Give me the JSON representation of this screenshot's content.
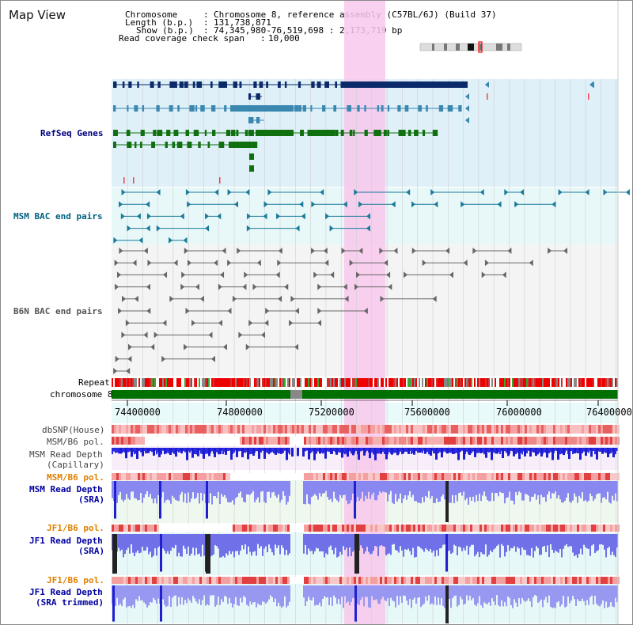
{
  "title": "Map View",
  "info": {
    "chromosome_label": "Chromosome",
    "chromosome_value": "Chromosome 8, reference assembly (C57BL/6J) (Build 37)",
    "length_label": "Length (b.p.)",
    "length_value": "131,738,871",
    "show_label": "Show (b.p.)",
    "show_value": "74,345,980-76,519,698 : 2,173,719 bp",
    "coverage_label": "Read coverage check span",
    "coverage_value": "10,000"
  },
  "tracks": {
    "refseq": "RefSeq Genes",
    "msm_bac": "MSM BAC end pairs",
    "b6n_bac": "B6N BAC end pairs",
    "repeat": "Repeat",
    "chromosome": "chromosome 8",
    "dbsnp": "dbSNP(House)",
    "msm_b6_pol_1": "MSM/B6 pol.",
    "msm_depth_cap_1": "MSM Read Depth",
    "msm_depth_cap_2": "(Capillary)",
    "msm_b6_pol_2": "MSM/B6 pol.",
    "msm_depth_sra_1": "MSM Read Depth",
    "msm_depth_sra_2": "(SRA)",
    "jf1_pol_1": "JF1/B6 pol.",
    "jf1_depth_1": "JF1 Read Depth",
    "jf1_depth_2": "(SRA)",
    "jf1_pol_2": "JF1/B6 pol.",
    "jf1_trim_1": "JF1 Read Depth",
    "jf1_trim_2": "(SRA trimmed)"
  },
  "axis_ticks": [
    "74400000",
    "74800000",
    "75200000",
    "75600000",
    "76000000",
    "76400000"
  ],
  "colors": {
    "refseq_label": "#000080",
    "msm_label": "#006080",
    "b6n_label": "#555555",
    "pol_orange": "#e08000",
    "depth_blue": "#0000a0",
    "highlight": "#f8c8ec"
  }
}
